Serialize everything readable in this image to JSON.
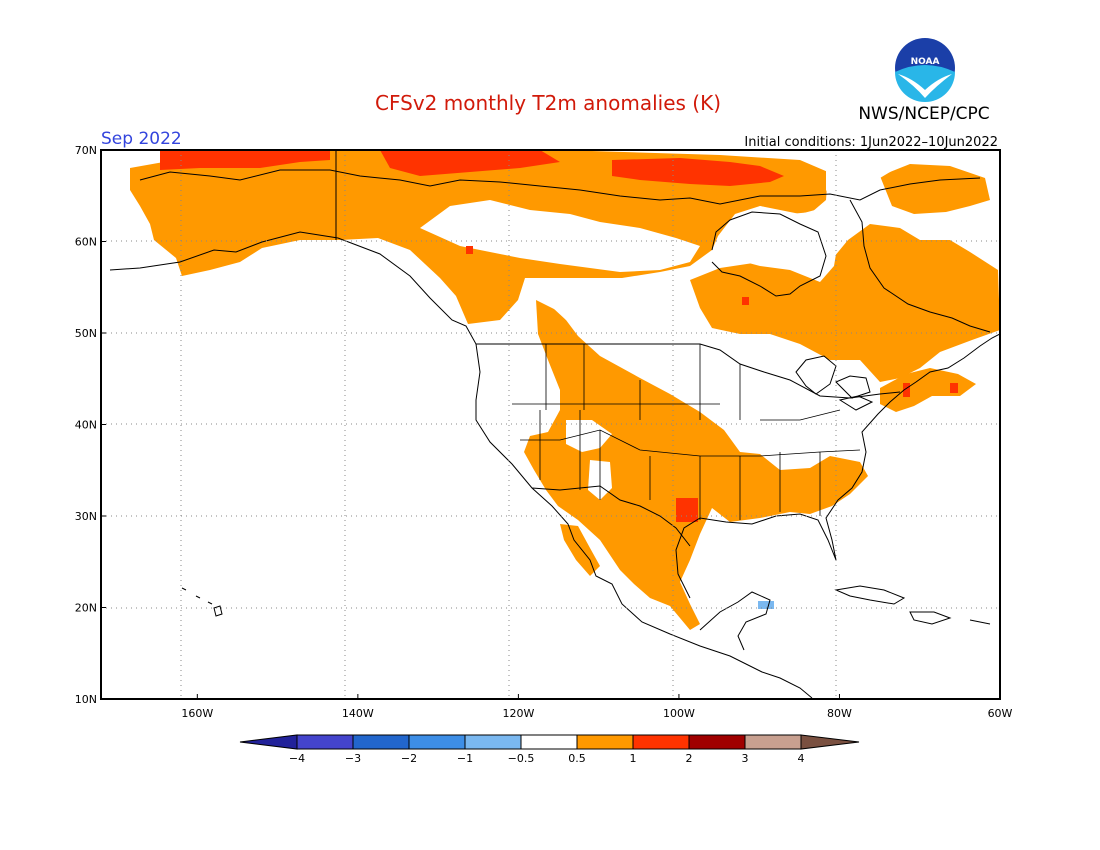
{
  "title": "CFSv2 monthly T2m anomalies (K)",
  "agency": "NWS/NCEP/CPC",
  "valid_month": "Sep 2022",
  "initial_conditions": "Initial conditions: 1Jun2022–10Jun2022",
  "logo_text": "NOAA",
  "colors": {
    "title": "#d11a0a",
    "month": "#3344dd",
    "land_outline": "#000000",
    "grid": "#888888"
  },
  "map": {
    "lon_range": [
      -172,
      -60
    ],
    "lat_range": [
      10,
      70
    ],
    "lon_ticks": [
      {
        "value": -160,
        "label": "160W"
      },
      {
        "value": -140,
        "label": "140W"
      },
      {
        "value": -120,
        "label": "120W"
      },
      {
        "value": -100,
        "label": "100W"
      },
      {
        "value": -80,
        "label": "80W"
      },
      {
        "value": -60,
        "label": "60W"
      }
    ],
    "lat_ticks": [
      {
        "value": 70,
        "label": "70N"
      },
      {
        "value": 60,
        "label": "60N"
      },
      {
        "value": 50,
        "label": "50N"
      },
      {
        "value": 40,
        "label": "40N"
      },
      {
        "value": 30,
        "label": "30N"
      },
      {
        "value": 20,
        "label": "20N"
      },
      {
        "value": 10,
        "label": "10N"
      }
    ]
  },
  "colorbar": {
    "colors": [
      "#22229a",
      "#4444cc",
      "#2266cc",
      "#3d8ee6",
      "#7ab8f0",
      "#ffffff",
      "#ff9900",
      "#ff3300",
      "#a00000",
      "#c8a090",
      "#7a5040"
    ],
    "labels": [
      "−4",
      "−3",
      "−2",
      "−1",
      "−0.5",
      "0.5",
      "1",
      "2",
      "3",
      "4"
    ]
  }
}
